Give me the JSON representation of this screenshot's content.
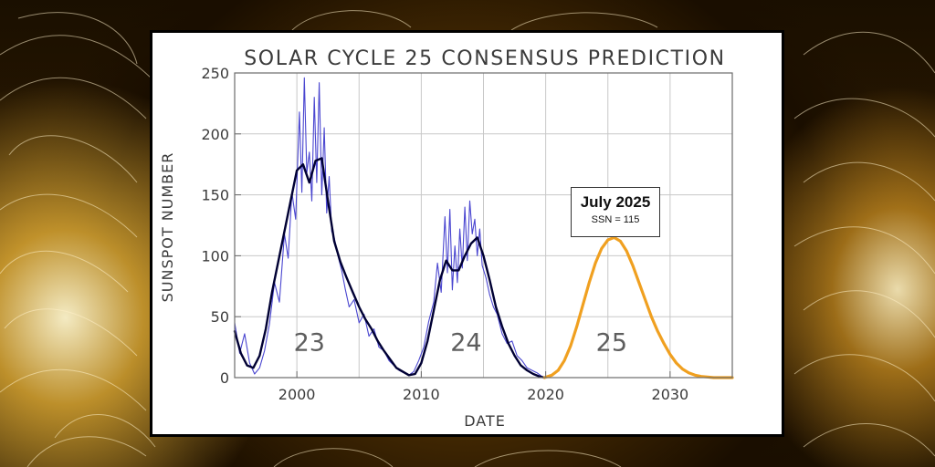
{
  "colors": {
    "observed_raw": "#4a46d0",
    "observed_smoothed": "#000033",
    "prediction": "#f0a020",
    "grid": "#c8c8c8"
  },
  "chart_data": {
    "type": "line",
    "title": "SOLAR CYCLE 25 CONSENSUS PREDICTION",
    "xlabel": "DATE",
    "ylabel": "SUNSPOT NUMBER",
    "xlim": [
      1995,
      2035
    ],
    "ylim": [
      0,
      250
    ],
    "x_ticks": [
      2000,
      2010,
      2020,
      2030
    ],
    "y_ticks": [
      0,
      50,
      100,
      150,
      200,
      250
    ],
    "grid": true,
    "series": [
      {
        "style": "monthly",
        "x": [
          1995.0,
          1995.4,
          1995.8,
          1996.2,
          1996.6,
          1997.0,
          1997.4,
          1997.8,
          1998.2,
          1998.6,
          1999.0,
          1999.3,
          1999.6,
          1999.9,
          2000.2,
          2000.4,
          2000.6,
          2000.8,
          2001.0,
          2001.2,
          2001.4,
          2001.6,
          2001.8,
          2002.0,
          2002.2,
          2002.4,
          2002.6,
          2002.8,
          2003.0,
          2003.3,
          2003.6,
          2003.9,
          2004.2,
          2004.6,
          2005.0,
          2005.4,
          2005.8,
          2006.2,
          2006.6,
          2007.0,
          2007.4,
          2007.8,
          2008.2,
          2008.6,
          2009.0,
          2009.4,
          2009.8,
          2010.2,
          2010.6,
          2011.0,
          2011.3,
          2011.6,
          2011.9,
          2012.1,
          2012.3,
          2012.5,
          2012.7,
          2012.9,
          2013.1,
          2013.3,
          2013.5,
          2013.7,
          2013.9,
          2014.1,
          2014.3,
          2014.5,
          2014.7,
          2014.9,
          2015.2,
          2015.5,
          2015.8,
          2016.1,
          2016.5,
          2016.9,
          2017.3,
          2017.7,
          2018.1,
          2018.5,
          2018.9,
          2019.3,
          2019.7
        ],
        "y": [
          45,
          20,
          36,
          12,
          3,
          8,
          22,
          44,
          78,
          62,
          118,
          98,
          152,
          130,
          218,
          152,
          246,
          168,
          185,
          145,
          230,
          160,
          242,
          150,
          205,
          135,
          165,
          120,
          115,
          100,
          88,
          72,
          58,
          64,
          45,
          52,
          34,
          40,
          25,
          22,
          14,
          10,
          6,
          4,
          2,
          5,
          14,
          25,
          46,
          62,
          94,
          70,
          132,
          86,
          138,
          72,
          108,
          78,
          122,
          90,
          140,
          96,
          145,
          118,
          130,
          100,
          122,
          92,
          82,
          68,
          58,
          52,
          36,
          28,
          30,
          18,
          14,
          8,
          6,
          4,
          1
        ]
      },
      {
        "style": "smoothed",
        "x": [
          1995.0,
          1995.5,
          1996.0,
          1996.5,
          1997.0,
          1997.5,
          1998.0,
          1998.5,
          1999.0,
          1999.5,
          2000.0,
          2000.5,
          2001.0,
          2001.5,
          2002.0,
          2002.5,
          2003.0,
          2003.5,
          2004.0,
          2004.5,
          2005.0,
          2005.5,
          2006.0,
          2006.5,
          2007.0,
          2007.5,
          2008.0,
          2008.5,
          2009.0,
          2009.5,
          2010.0,
          2010.5,
          2011.0,
          2011.5,
          2012.0,
          2012.5,
          2013.0,
          2013.5,
          2014.0,
          2014.5,
          2015.0,
          2015.5,
          2016.0,
          2016.5,
          2017.0,
          2017.5,
          2018.0,
          2018.5,
          2019.0,
          2019.5,
          2019.9
        ],
        "y": [
          38,
          20,
          10,
          8,
          18,
          40,
          70,
          95,
          120,
          145,
          170,
          175,
          160,
          178,
          180,
          145,
          112,
          95,
          82,
          70,
          58,
          48,
          40,
          30,
          22,
          15,
          8,
          5,
          2,
          3,
          12,
          30,
          55,
          80,
          96,
          88,
          88,
          100,
          110,
          115,
          100,
          80,
          58,
          42,
          28,
          18,
          10,
          6,
          3,
          1,
          0
        ]
      },
      {
        "style": "prediction",
        "x": [
          2019.9,
          2020.5,
          2021.0,
          2021.5,
          2022.0,
          2022.5,
          2023.0,
          2023.5,
          2024.0,
          2024.5,
          2025.0,
          2025.5,
          2026.0,
          2026.5,
          2027.0,
          2027.5,
          2028.0,
          2028.5,
          2029.0,
          2029.5,
          2030.0,
          2030.5,
          2031.0,
          2031.5,
          2032.0,
          2032.5,
          2033.0,
          2033.5,
          2034.0,
          2034.5,
          2035.0
        ],
        "y": [
          0,
          2,
          6,
          14,
          26,
          42,
          60,
          78,
          94,
          106,
          113,
          115,
          112,
          104,
          92,
          78,
          64,
          50,
          38,
          28,
          19,
          12,
          7,
          4,
          2,
          1,
          0.5,
          0,
          0,
          0,
          0
        ]
      }
    ],
    "annotations": [
      {
        "text": "23",
        "x": 2001.0,
        "y": 22
      },
      {
        "text": "24",
        "x": 2013.6,
        "y": 22
      },
      {
        "text": "25",
        "x": 2025.3,
        "y": 22
      }
    ],
    "callout": {
      "title": "July 2025",
      "subtitle": "SSN = 115"
    }
  }
}
